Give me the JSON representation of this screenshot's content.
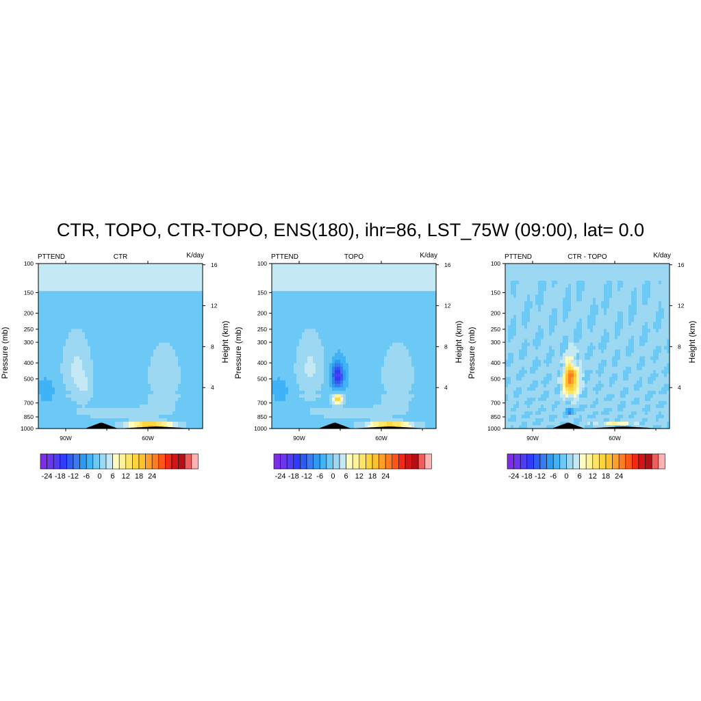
{
  "figure_title": "CTR, TOPO, CTR-TOPO, ENS(180), ihr=86, LST_75W (09:00), lat=  0.0",
  "colors": {
    "palette": [
      "#7b2ee6",
      "#6a36ee",
      "#4f3df2",
      "#2f3bff",
      "#2f5cf0",
      "#3b7bf0",
      "#2e9bf2",
      "#3fb3f6",
      "#6cc8f4",
      "#9dd8f2",
      "#c5e8f5",
      "#fffcc0",
      "#fff39a",
      "#ffe566",
      "#ffd53d",
      "#ffc12e",
      "#ff9f2a",
      "#ff7d20",
      "#ff5518",
      "#f02a17",
      "#d41515",
      "#b50f16",
      "#f05d5d",
      "#ffb2b2"
    ],
    "terrain": "#000000"
  },
  "chart_data": [
    {
      "type": "heatmap",
      "variable_label": "PTTEND",
      "title": "CTR",
      "units": "K/day",
      "ylabel": "Pressure (mb)",
      "ylabel_right": "Height (km)",
      "x_ticks": [
        "90W",
        "60W"
      ],
      "y_ticks": [
        "100",
        "150",
        "200",
        "250",
        "300",
        "400",
        "500",
        "700",
        "850",
        "1000"
      ],
      "y_ticks_right": [
        "16",
        "12",
        "8",
        "4"
      ],
      "contour_features": [
        {
          "lon": -83,
          "p": 560,
          "value": 9
        },
        {
          "lon": -55,
          "p": 480,
          "value": 8
        },
        {
          "lon": -60,
          "p": 960,
          "value": 25
        }
      ]
    },
    {
      "type": "heatmap",
      "variable_label": "PTTEND",
      "title": "TOPO",
      "units": "K/day",
      "ylabel": "Pressure (mb)",
      "ylabel_right": "Height (km)",
      "x_ticks": [
        "90W",
        "60W"
      ],
      "y_ticks": [
        "100",
        "150",
        "200",
        "250",
        "300",
        "400",
        "500",
        "700",
        "850",
        "1000"
      ],
      "y_ticks_right": [
        "16",
        "12",
        "8",
        "4"
      ],
      "contour_features": [
        {
          "lon": -76,
          "p": 490,
          "value": -15
        },
        {
          "lon": -76,
          "p": 660,
          "value": 18
        },
        {
          "lon": -58,
          "p": 960,
          "value": 22
        }
      ]
    },
    {
      "type": "heatmap",
      "variable_label": "PTTEND",
      "title": "CTR - TOPO",
      "units": "K/day",
      "ylabel": "Pressure (mb)",
      "ylabel_right": "Height (km)",
      "x_ticks": [
        "90W",
        "60W"
      ],
      "y_ticks": [
        "100",
        "150",
        "200",
        "250",
        "300",
        "400",
        "500",
        "700",
        "850",
        "1000"
      ],
      "y_ticks_right": [
        "16",
        "12",
        "8",
        "4"
      ],
      "contour_features": [
        {
          "lon": -76,
          "p": 500,
          "value": 24
        },
        {
          "lon": -76,
          "p": 790,
          "value": -8
        },
        {
          "lon": -60,
          "p": 930,
          "value": 9
        }
      ]
    }
  ],
  "colorbar": {
    "levels": [
      -24,
      -18,
      -12,
      -6,
      0,
      6,
      12,
      18,
      24
    ],
    "tick_labels": [
      "-24",
      "-18",
      "-12",
      "-6",
      "0",
      "6",
      "12",
      "18",
      "24"
    ]
  }
}
